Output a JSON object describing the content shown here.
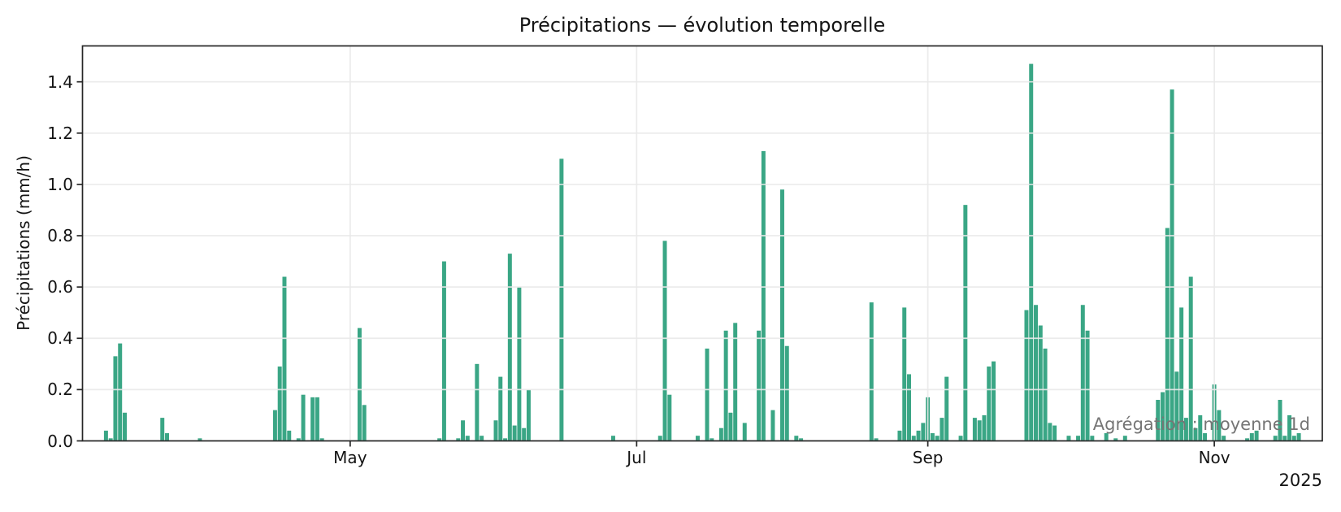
{
  "figure": {
    "background": "#ffffff",
    "bar_color": "#3aa685",
    "grid_color": "#e9e9e9",
    "spine_color": "#262626",
    "text_color": "#141414",
    "annotation_color": "#757575"
  },
  "chart_data": {
    "type": "bar",
    "title": "Précipitations — évolution temporelle",
    "xlabel": "",
    "ylabel": "Précipitations (mm/h)",
    "annotation": "Agrégation : moyenne 1d",
    "year_label": "2025",
    "grid": true,
    "legend_position": "none",
    "x_start": "2025-03-05",
    "x_end": "2025-11-24",
    "ylim": [
      0,
      1.54
    ],
    "yticks": [
      0.0,
      0.2,
      0.4,
      0.6,
      0.8,
      1.0,
      1.2,
      1.4
    ],
    "xticks": [
      {
        "date": "2025-05-01",
        "label": "May"
      },
      {
        "date": "2025-07-01",
        "label": "Jul"
      },
      {
        "date": "2025-09-01",
        "label": "Sep"
      },
      {
        "date": "2025-11-01",
        "label": "Nov"
      }
    ],
    "series": [
      {
        "name": "Précipitations",
        "unit": "mm/h",
        "aggregation": "moyenne 1d",
        "points": [
          {
            "d": "2025-03-10",
            "v": 0.04
          },
          {
            "d": "2025-03-11",
            "v": 0.01
          },
          {
            "d": "2025-03-12",
            "v": 0.33
          },
          {
            "d": "2025-03-13",
            "v": 0.38
          },
          {
            "d": "2025-03-14",
            "v": 0.11
          },
          {
            "d": "2025-03-22",
            "v": 0.09
          },
          {
            "d": "2025-03-23",
            "v": 0.03
          },
          {
            "d": "2025-03-30",
            "v": 0.01
          },
          {
            "d": "2025-04-15",
            "v": 0.12
          },
          {
            "d": "2025-04-16",
            "v": 0.29
          },
          {
            "d": "2025-04-17",
            "v": 0.64
          },
          {
            "d": "2025-04-18",
            "v": 0.04
          },
          {
            "d": "2025-04-20",
            "v": 0.01
          },
          {
            "d": "2025-04-21",
            "v": 0.18
          },
          {
            "d": "2025-04-23",
            "v": 0.17
          },
          {
            "d": "2025-04-24",
            "v": 0.17
          },
          {
            "d": "2025-04-25",
            "v": 0.01
          },
          {
            "d": "2025-05-03",
            "v": 0.44
          },
          {
            "d": "2025-05-04",
            "v": 0.14
          },
          {
            "d": "2025-05-20",
            "v": 0.01
          },
          {
            "d": "2025-05-21",
            "v": 0.7
          },
          {
            "d": "2025-05-24",
            "v": 0.01
          },
          {
            "d": "2025-05-25",
            "v": 0.08
          },
          {
            "d": "2025-05-26",
            "v": 0.02
          },
          {
            "d": "2025-05-28",
            "v": 0.3
          },
          {
            "d": "2025-05-29",
            "v": 0.02
          },
          {
            "d": "2025-06-01",
            "v": 0.08
          },
          {
            "d": "2025-06-02",
            "v": 0.25
          },
          {
            "d": "2025-06-03",
            "v": 0.01
          },
          {
            "d": "2025-06-04",
            "v": 0.73
          },
          {
            "d": "2025-06-05",
            "v": 0.06
          },
          {
            "d": "2025-06-06",
            "v": 0.6
          },
          {
            "d": "2025-06-07",
            "v": 0.05
          },
          {
            "d": "2025-06-08",
            "v": 0.2
          },
          {
            "d": "2025-06-15",
            "v": 1.1
          },
          {
            "d": "2025-06-26",
            "v": 0.02
          },
          {
            "d": "2025-07-06",
            "v": 0.02
          },
          {
            "d": "2025-07-07",
            "v": 0.78
          },
          {
            "d": "2025-07-08",
            "v": 0.18
          },
          {
            "d": "2025-07-14",
            "v": 0.02
          },
          {
            "d": "2025-07-16",
            "v": 0.36
          },
          {
            "d": "2025-07-17",
            "v": 0.01
          },
          {
            "d": "2025-07-19",
            "v": 0.05
          },
          {
            "d": "2025-07-20",
            "v": 0.43
          },
          {
            "d": "2025-07-21",
            "v": 0.11
          },
          {
            "d": "2025-07-22",
            "v": 0.46
          },
          {
            "d": "2025-07-24",
            "v": 0.07
          },
          {
            "d": "2025-07-27",
            "v": 0.43
          },
          {
            "d": "2025-07-28",
            "v": 1.13
          },
          {
            "d": "2025-07-30",
            "v": 0.12
          },
          {
            "d": "2025-08-01",
            "v": 0.98
          },
          {
            "d": "2025-08-02",
            "v": 0.37
          },
          {
            "d": "2025-08-04",
            "v": 0.02
          },
          {
            "d": "2025-08-05",
            "v": 0.01
          },
          {
            "d": "2025-08-20",
            "v": 0.54
          },
          {
            "d": "2025-08-21",
            "v": 0.01
          },
          {
            "d": "2025-08-26",
            "v": 0.04
          },
          {
            "d": "2025-08-27",
            "v": 0.52
          },
          {
            "d": "2025-08-28",
            "v": 0.26
          },
          {
            "d": "2025-08-29",
            "v": 0.02
          },
          {
            "d": "2025-08-30",
            "v": 0.04
          },
          {
            "d": "2025-08-31",
            "v": 0.07
          },
          {
            "d": "2025-09-01",
            "v": 0.17
          },
          {
            "d": "2025-09-02",
            "v": 0.03
          },
          {
            "d": "2025-09-03",
            "v": 0.02
          },
          {
            "d": "2025-09-04",
            "v": 0.09
          },
          {
            "d": "2025-09-05",
            "v": 0.25
          },
          {
            "d": "2025-09-08",
            "v": 0.02
          },
          {
            "d": "2025-09-09",
            "v": 0.92
          },
          {
            "d": "2025-09-11",
            "v": 0.09
          },
          {
            "d": "2025-09-12",
            "v": 0.08
          },
          {
            "d": "2025-09-13",
            "v": 0.1
          },
          {
            "d": "2025-09-14",
            "v": 0.29
          },
          {
            "d": "2025-09-15",
            "v": 0.31
          },
          {
            "d": "2025-09-22",
            "v": 0.51
          },
          {
            "d": "2025-09-23",
            "v": 1.47
          },
          {
            "d": "2025-09-24",
            "v": 0.53
          },
          {
            "d": "2025-09-25",
            "v": 0.45
          },
          {
            "d": "2025-09-26",
            "v": 0.36
          },
          {
            "d": "2025-09-27",
            "v": 0.07
          },
          {
            "d": "2025-09-28",
            "v": 0.06
          },
          {
            "d": "2025-10-01",
            "v": 0.02
          },
          {
            "d": "2025-10-03",
            "v": 0.02
          },
          {
            "d": "2025-10-04",
            "v": 0.53
          },
          {
            "d": "2025-10-05",
            "v": 0.43
          },
          {
            "d": "2025-10-06",
            "v": 0.02
          },
          {
            "d": "2025-10-09",
            "v": 0.03
          },
          {
            "d": "2025-10-11",
            "v": 0.01
          },
          {
            "d": "2025-10-13",
            "v": 0.02
          },
          {
            "d": "2025-10-20",
            "v": 0.16
          },
          {
            "d": "2025-10-21",
            "v": 0.19
          },
          {
            "d": "2025-10-22",
            "v": 0.83
          },
          {
            "d": "2025-10-23",
            "v": 1.37
          },
          {
            "d": "2025-10-24",
            "v": 0.27
          },
          {
            "d": "2025-10-25",
            "v": 0.52
          },
          {
            "d": "2025-10-26",
            "v": 0.09
          },
          {
            "d": "2025-10-27",
            "v": 0.64
          },
          {
            "d": "2025-10-28",
            "v": 0.05
          },
          {
            "d": "2025-10-29",
            "v": 0.1
          },
          {
            "d": "2025-10-30",
            "v": 0.03
          },
          {
            "d": "2025-11-01",
            "v": 0.22
          },
          {
            "d": "2025-11-02",
            "v": 0.12
          },
          {
            "d": "2025-11-03",
            "v": 0.02
          },
          {
            "d": "2025-11-08",
            "v": 0.01
          },
          {
            "d": "2025-11-09",
            "v": 0.03
          },
          {
            "d": "2025-11-10",
            "v": 0.04
          },
          {
            "d": "2025-11-14",
            "v": 0.02
          },
          {
            "d": "2025-11-15",
            "v": 0.16
          },
          {
            "d": "2025-11-16",
            "v": 0.02
          },
          {
            "d": "2025-11-17",
            "v": 0.1
          },
          {
            "d": "2025-11-18",
            "v": 0.02
          },
          {
            "d": "2025-11-19",
            "v": 0.03
          }
        ]
      }
    ]
  }
}
